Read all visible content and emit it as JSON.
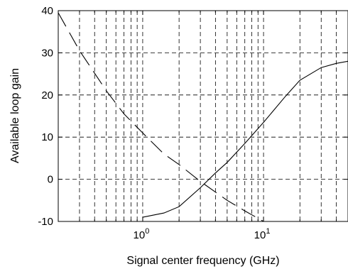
{
  "chart_data": {
    "type": "line",
    "title": "",
    "xlabel": "Signal center frequency (GHz)",
    "ylabel": "Available loop gain",
    "xscale": "log",
    "xlim": [
      0.2,
      50
    ],
    "ylim": [
      -10,
      40
    ],
    "grid": true,
    "x_ticks": [
      {
        "base": "10",
        "exp": "0",
        "value": 1
      },
      {
        "base": "10",
        "exp": "1",
        "value": 10
      }
    ],
    "y_ticks": [
      "-10",
      "0",
      "10",
      "20",
      "30",
      "40"
    ],
    "series": [
      {
        "style": "dashed",
        "x": [
          0.2,
          0.3,
          0.5,
          0.7,
          1.0,
          1.5,
          2.0,
          3.0,
          5.0,
          7.0,
          10.0
        ],
        "y": [
          39.5,
          30.5,
          21.0,
          15.5,
          11.0,
          6.0,
          3.5,
          -0.5,
          -5.0,
          -7.5,
          -10.0
        ]
      },
      {
        "style": "solid",
        "x": [
          1.0,
          1.5,
          2.0,
          3.0,
          4.0,
          5.0,
          7.0,
          10.0,
          15.0,
          20.0,
          30.0,
          40.0,
          50.0
        ],
        "y": [
          -9.0,
          -8.0,
          -6.5,
          -2.0,
          1.5,
          4.0,
          8.5,
          13.5,
          19.5,
          23.5,
          26.5,
          27.5,
          28.0
        ]
      }
    ]
  }
}
